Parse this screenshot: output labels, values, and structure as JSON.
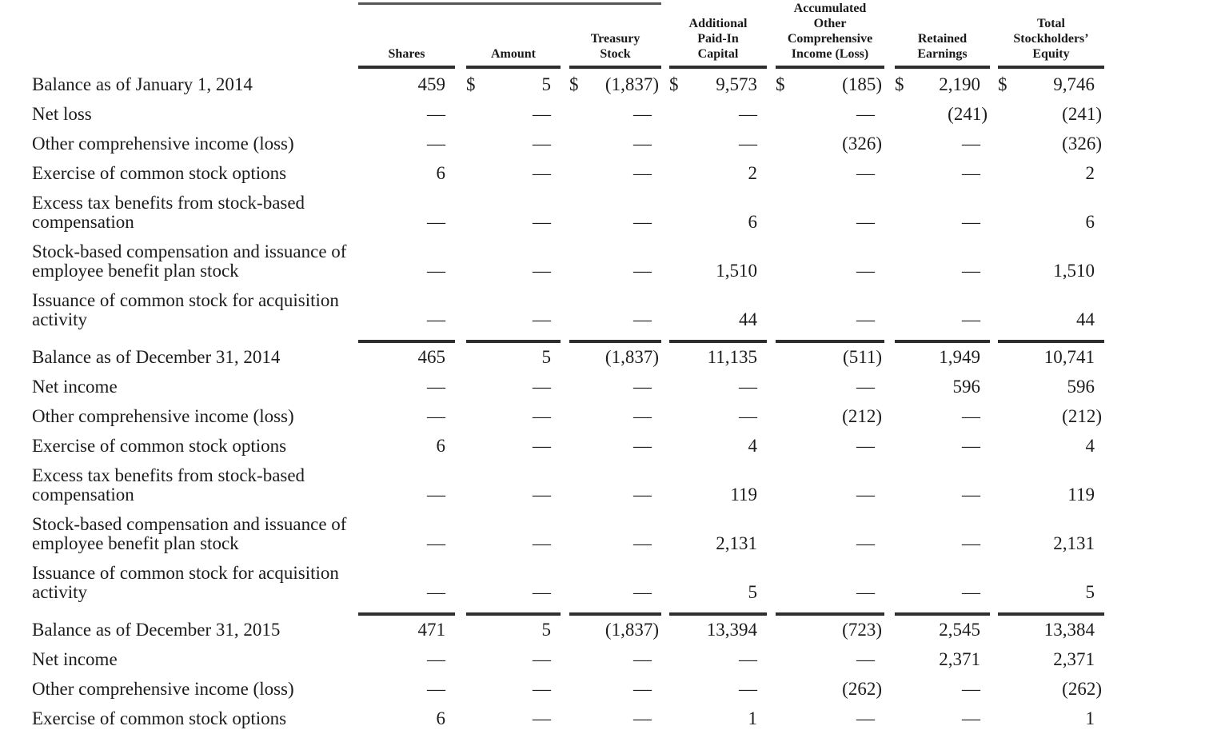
{
  "table": {
    "currency_symbol": "$",
    "columns": [
      {
        "key": "shares",
        "heading": "Shares"
      },
      {
        "key": "amount",
        "heading": "Amount"
      },
      {
        "key": "treasury-stock",
        "heading": "Treasury\nStock"
      },
      {
        "key": "additional-paid-in-capital",
        "heading": "Additional\nPaid-In\nCapital"
      },
      {
        "key": "accumulated-oci",
        "heading": "Accumulated\nOther\nComprehensive\nIncome (Loss)"
      },
      {
        "key": "retained-earnings",
        "heading": "Retained\nEarnings"
      },
      {
        "key": "total-stockholders-equity",
        "heading": "Total\nStockholders’\nEquity"
      }
    ],
    "rows": [
      {
        "label": "Balance as of January 1, 2014",
        "values": [
          "459",
          "5",
          "(1,837)",
          "9,573",
          "(185)",
          "2,190",
          "9,746"
        ],
        "dollar_signs": [
          false,
          true,
          true,
          true,
          true,
          true,
          true
        ]
      },
      {
        "label": "Net loss",
        "values": [
          "—",
          "—",
          "—",
          "—",
          "—",
          "(241)",
          "(241)"
        ]
      },
      {
        "label": "Other comprehensive income (loss)",
        "values": [
          "—",
          "—",
          "—",
          "—",
          "(326)",
          "—",
          "(326)"
        ]
      },
      {
        "label": "Exercise of common stock options",
        "values": [
          "6",
          "—",
          "—",
          "2",
          "—",
          "—",
          "2"
        ]
      },
      {
        "label": "Excess tax benefits from stock-based\ncompensation",
        "values": [
          "—",
          "—",
          "—",
          "6",
          "—",
          "—",
          "6"
        ]
      },
      {
        "label": "Stock-based compensation and issuance of\nemployee benefit plan stock",
        "values": [
          "—",
          "—",
          "—",
          "1,510",
          "—",
          "—",
          "1,510"
        ]
      },
      {
        "label": "Issuance of common stock for acquisition\nactivity",
        "values": [
          "—",
          "—",
          "—",
          "44",
          "—",
          "—",
          "44"
        ]
      },
      {
        "label": "Balance as of December 31, 2014",
        "values": [
          "465",
          "5",
          "(1,837)",
          "11,135",
          "(511)",
          "1,949",
          "10,741"
        ],
        "rule_above": true
      },
      {
        "label": "Net income",
        "values": [
          "—",
          "—",
          "—",
          "—",
          "—",
          "596",
          "596"
        ]
      },
      {
        "label": "Other comprehensive income (loss)",
        "values": [
          "—",
          "—",
          "—",
          "—",
          "(212)",
          "—",
          "(212)"
        ]
      },
      {
        "label": "Exercise of common stock options",
        "values": [
          "6",
          "—",
          "—",
          "4",
          "—",
          "—",
          "4"
        ]
      },
      {
        "label": "Excess tax benefits from stock-based\ncompensation",
        "values": [
          "—",
          "—",
          "—",
          "119",
          "—",
          "—",
          "119"
        ]
      },
      {
        "label": "Stock-based compensation and issuance of\nemployee benefit plan stock",
        "values": [
          "—",
          "—",
          "—",
          "2,131",
          "—",
          "—",
          "2,131"
        ]
      },
      {
        "label": "Issuance of common stock for acquisition\nactivity",
        "values": [
          "—",
          "—",
          "—",
          "5",
          "—",
          "—",
          "5"
        ]
      },
      {
        "label": "Balance as of December 31, 2015",
        "values": [
          "471",
          "5",
          "(1,837)",
          "13,394",
          "(723)",
          "2,545",
          "13,384"
        ],
        "rule_above": true
      },
      {
        "label": "Net income",
        "values": [
          "—",
          "—",
          "—",
          "—",
          "—",
          "2,371",
          "2,371"
        ]
      },
      {
        "label": "Other comprehensive income (loss)",
        "values": [
          "—",
          "—",
          "—",
          "—",
          "(262)",
          "—",
          "(262)"
        ]
      },
      {
        "label": "Exercise of common stock options",
        "values": [
          "6",
          "—",
          "—",
          "1",
          "—",
          "—",
          "1"
        ]
      }
    ]
  }
}
